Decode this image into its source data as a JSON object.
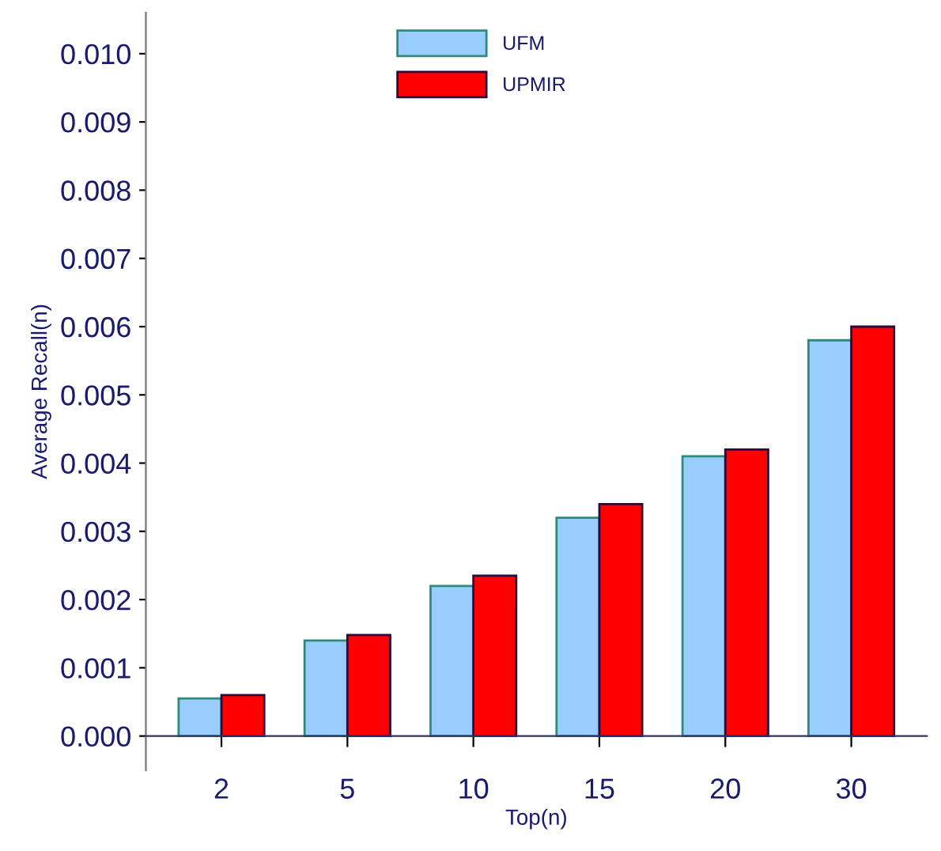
{
  "chart_data": {
    "type": "bar",
    "xlabel": "Top(n)",
    "ylabel": "Average Recall(n)",
    "categories": [
      "2",
      "5",
      "10",
      "15",
      "20",
      "30"
    ],
    "series": [
      {
        "name": "UFM",
        "color": "#99ccff",
        "values": [
          0.00055,
          0.0014,
          0.0022,
          0.0032,
          0.0041,
          0.0058
        ]
      },
      {
        "name": "UPMIR",
        "color": "#ff0000",
        "values": [
          0.0006,
          0.00148,
          0.00235,
          0.0034,
          0.0042,
          0.006
        ]
      }
    ],
    "ylim": [
      -0.0005,
      0.0106
    ],
    "yticks": [
      {
        "value": 0,
        "label": "0.000"
      },
      {
        "value": 0.001,
        "label": "0.001"
      },
      {
        "value": 0.002,
        "label": "0.002"
      },
      {
        "value": 0.003,
        "label": "0.003"
      },
      {
        "value": 0.004,
        "label": "0.004"
      },
      {
        "value": 0.005,
        "label": "0.005"
      },
      {
        "value": 0.006,
        "label": "0.006"
      },
      {
        "value": 0.007,
        "label": "0.007"
      },
      {
        "value": 0.008,
        "label": "0.008"
      },
      {
        "value": 0.009,
        "label": "0.009"
      },
      {
        "value": 0.01,
        "label": "0.010"
      }
    ],
    "grid": false,
    "legend": "top"
  }
}
